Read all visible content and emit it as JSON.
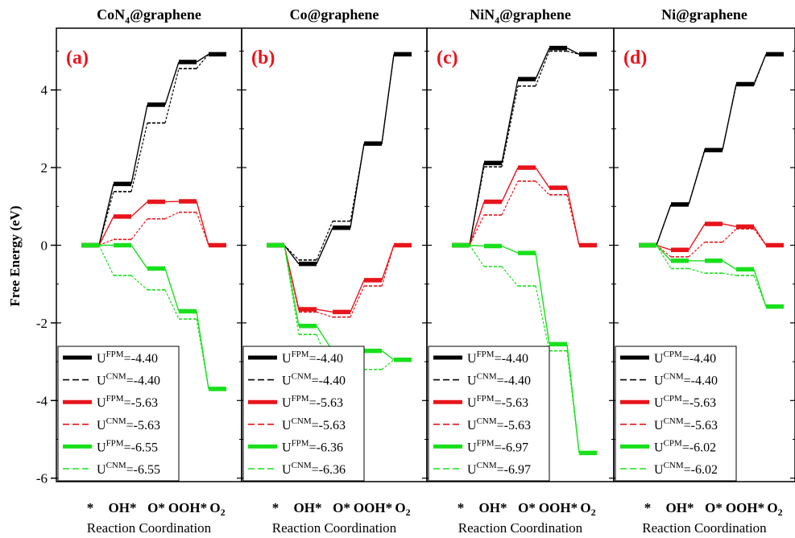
{
  "figure": {
    "ylabel": "Free Energy (eV)",
    "y_ticks": [
      -6,
      -4,
      -2,
      0,
      2,
      4
    ],
    "x_ticks": [
      "*",
      "OH*",
      "O*",
      "OOH*",
      "O2"
    ],
    "xlabel": "Reaction Coordination",
    "colors": {
      "black": "#000000",
      "red": "#e8141b",
      "green": "#18e01c"
    }
  },
  "chart_data": [
    {
      "type": "line",
      "title": "CoN4@graphene",
      "panel_label": "(a)",
      "x": [
        "*",
        "OH*",
        "O*",
        "OOH*",
        "O2"
      ],
      "xlabel": "Reaction Coordination",
      "ylabel": "Free Energy (eV)",
      "ylim": [
        -6,
        5.4
      ],
      "series": [
        {
          "name": "U^FPM=-4.40",
          "sup": "FPM",
          "value": "=-4.40",
          "style": "solid",
          "color": "#000000",
          "values": [
            0,
            1.58,
            3.62,
            4.72,
            4.92
          ]
        },
        {
          "name": "U^CNM=-4.40",
          "sup": "CNM",
          "value": "=-4.40",
          "style": "dashed",
          "color": "#000000",
          "values": [
            0,
            1.38,
            3.15,
            4.55,
            4.92
          ]
        },
        {
          "name": "U^FPM=-5.63",
          "sup": "FPM",
          "value": "=-5.63",
          "style": "solid",
          "color": "#e8141b",
          "values": [
            0,
            0.74,
            1.12,
            1.13,
            0
          ]
        },
        {
          "name": "U^CNM=-5.63",
          "sup": "CNM",
          "value": "=-5.63",
          "style": "dashed",
          "color": "#e8141b",
          "values": [
            0,
            0.15,
            0.68,
            0.85,
            0
          ]
        },
        {
          "name": "U^FPM=-6.55",
          "sup": "FPM",
          "value": "=-6.55",
          "style": "solid",
          "color": "#18e01c",
          "values": [
            0,
            0.0,
            -0.6,
            -1.7,
            -3.7
          ]
        },
        {
          "name": "U^CNM=-6.55",
          "sup": "CNM",
          "value": "=-6.55",
          "style": "dashed",
          "color": "#18e01c",
          "values": [
            0,
            -0.78,
            -1.15,
            -1.9,
            -3.7
          ]
        }
      ]
    },
    {
      "type": "line",
      "title": "Co@graphene",
      "panel_label": "(b)",
      "x": [
        "*",
        "OH*",
        "O*",
        "OOH*",
        "O2"
      ],
      "xlabel": "Reaction Coordination",
      "ylabel": "Free Energy (eV)",
      "ylim": [
        -6,
        5.4
      ],
      "series": [
        {
          "name": "U^FPM=-4.40",
          "sup": "FPM",
          "value": "=-4.40",
          "style": "solid",
          "color": "#000000",
          "values": [
            0,
            -0.48,
            0.45,
            2.62,
            4.92
          ]
        },
        {
          "name": "U^CNM=-4.40",
          "sup": "CNM",
          "value": "=-4.40",
          "style": "dashed",
          "color": "#000000",
          "values": [
            0,
            -0.38,
            0.62,
            2.6,
            4.92
          ]
        },
        {
          "name": "U^FPM=-5.63",
          "sup": "FPM",
          "value": "=-5.63",
          "style": "solid",
          "color": "#e8141b",
          "values": [
            0,
            -1.65,
            -1.72,
            -0.9,
            0
          ]
        },
        {
          "name": "U^CNM=-5.63",
          "sup": "CNM",
          "value": "=-5.63",
          "style": "dashed",
          "color": "#e8141b",
          "values": [
            0,
            -1.72,
            -1.85,
            -1.05,
            0
          ]
        },
        {
          "name": "U^FPM=-6.36",
          "sup": "FPM",
          "value": "=-6.36",
          "style": "solid",
          "color": "#18e01c",
          "values": [
            0,
            -2.08,
            -2.72,
            -2.72,
            -2.95
          ]
        },
        {
          "name": "U^CNM=-6.36",
          "sup": "CNM",
          "value": "=-6.36",
          "style": "dashed",
          "color": "#18e01c",
          "values": [
            0,
            -2.3,
            -3.3,
            -3.2,
            -2.95
          ]
        }
      ]
    },
    {
      "type": "line",
      "title": "NiN4@graphene",
      "panel_label": "(c)",
      "x": [
        "*",
        "OH*",
        "O*",
        "OOH*",
        "O2"
      ],
      "xlabel": "Reaction Coordination",
      "ylabel": "Free Energy (eV)",
      "ylim": [
        -6,
        5.4
      ],
      "series": [
        {
          "name": "U^FPM=-4.40",
          "sup": "FPM",
          "value": "=-4.40",
          "style": "solid",
          "color": "#000000",
          "values": [
            0,
            2.12,
            4.28,
            5.08,
            4.92
          ]
        },
        {
          "name": "U^CNM=-4.40",
          "sup": "CNM",
          "value": "=-4.40",
          "style": "dashed",
          "color": "#000000",
          "values": [
            0,
            2.02,
            4.1,
            5.0,
            4.92
          ]
        },
        {
          "name": "U^FPM=-5.63",
          "sup": "FPM",
          "value": "=-5.63",
          "style": "solid",
          "color": "#e8141b",
          "values": [
            0,
            1.12,
            2.0,
            1.48,
            0
          ]
        },
        {
          "name": "U^CNM=-5.63",
          "sup": "CNM",
          "value": "=-5.63",
          "style": "dashed",
          "color": "#e8141b",
          "values": [
            0,
            0.78,
            1.65,
            1.3,
            0
          ]
        },
        {
          "name": "U^FPM=-6.97",
          "sup": "FPM",
          "value": "=-6.97",
          "style": "solid",
          "color": "#18e01c",
          "values": [
            0,
            -0.02,
            -0.2,
            -2.55,
            -5.35
          ]
        },
        {
          "name": "U^CNM=-6.97",
          "sup": "CNM",
          "value": "=-6.97",
          "style": "dashed",
          "color": "#18e01c",
          "values": [
            0,
            -0.55,
            -1.05,
            -2.72,
            -5.35
          ]
        }
      ]
    },
    {
      "type": "line",
      "title": "Ni@graphene",
      "panel_label": "(d)",
      "x": [
        "*",
        "OH*",
        "O*",
        "OOH*",
        "O2"
      ],
      "xlabel": "Reaction Coordination",
      "ylabel": "Free Energy (eV)",
      "ylim": [
        -6,
        5.4
      ],
      "series": [
        {
          "name": "U^CPM=-4.40",
          "sup": "CPM",
          "value": "=-4.40",
          "style": "solid",
          "color": "#000000",
          "values": [
            0,
            1.05,
            2.45,
            4.15,
            4.92
          ]
        },
        {
          "name": "U^CNM=-4.40",
          "sup": "CNM",
          "value": "=-4.40",
          "style": "dashed",
          "color": "#000000",
          "values": [
            0,
            1.05,
            2.48,
            4.12,
            4.92
          ]
        },
        {
          "name": "U^CPM=-5.63",
          "sup": "CPM",
          "value": "=-5.63",
          "style": "solid",
          "color": "#e8141b",
          "values": [
            0,
            -0.12,
            0.55,
            0.48,
            0
          ]
        },
        {
          "name": "U^CNM=-5.63",
          "sup": "CNM",
          "value": "=-5.63",
          "style": "dashed",
          "color": "#e8141b",
          "values": [
            0,
            -0.3,
            0.08,
            0.42,
            0
          ]
        },
        {
          "name": "U^CPM=-6.02",
          "sup": "CPM",
          "value": "=-6.02",
          "style": "solid",
          "color": "#18e01c",
          "values": [
            0,
            -0.4,
            -0.4,
            -0.62,
            -1.58
          ]
        },
        {
          "name": "U^CNM=-6.02",
          "sup": "CNM",
          "value": "=-6.02",
          "style": "dashed",
          "color": "#18e01c",
          "values": [
            0,
            -0.6,
            -0.72,
            -0.78,
            -1.58
          ]
        }
      ]
    }
  ]
}
